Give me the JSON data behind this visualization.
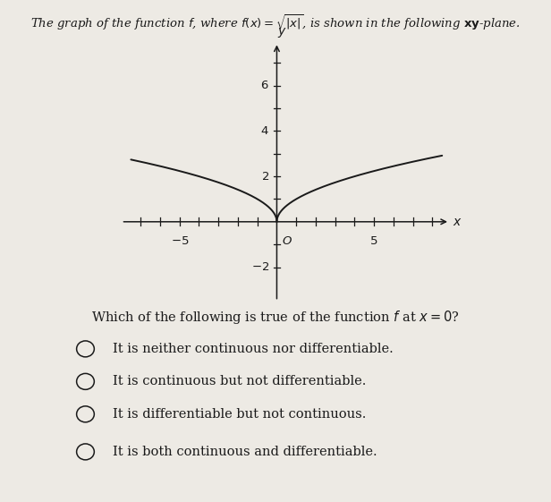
{
  "title_text": "The graph of the function $f$, where $f(x) = \\sqrt{|x|}$, is shown in the following $\\mathbf{xy}$-plane.",
  "question_text": "Which of the following is true of the function $f$ at $x = 0$?",
  "options": [
    "It is neither continuous nor differentiable.",
    "It is continuous but not differentiable.",
    "It is differentiable but not continuous.",
    "It is both continuous and differentiable."
  ],
  "xlim": [
    -8.0,
    9.0
  ],
  "ylim": [
    -3.5,
    8.0
  ],
  "curve_color": "#1a1a1a",
  "bg_color": "#edeae4",
  "axis_color": "#1a1a1a",
  "text_color": "#1a1a1a",
  "title_fontsize": 9.5,
  "question_fontsize": 10.5,
  "option_fontsize": 10.5,
  "x_plot_min": -7.5,
  "x_plot_max": 8.5
}
